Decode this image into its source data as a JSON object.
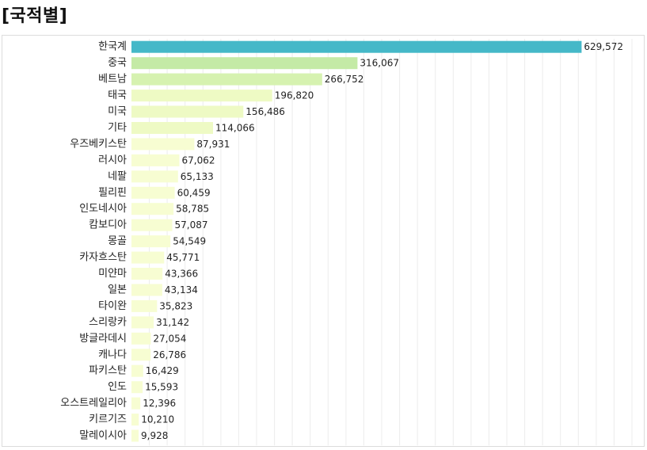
{
  "page": {
    "title": "[국적별]"
  },
  "chart_data": {
    "type": "bar",
    "orientation": "horizontal",
    "title": "[국적별]",
    "xlabel": "",
    "ylabel": "",
    "xlim": [
      0,
      700000
    ],
    "grid": true,
    "legend": "none",
    "categories": [
      "한국계",
      "중국",
      "베트남",
      "태국",
      "미국",
      "기타",
      "우즈베키스탄",
      "러시아",
      "네팔",
      "필리핀",
      "인도네시아",
      "캄보디아",
      "몽골",
      "카자흐스탄",
      "미얀마",
      "일본",
      "타이완",
      "스리랑카",
      "방글라데시",
      "캐나다",
      "파키스탄",
      "인도",
      "오스트레일리아",
      "키르기즈",
      "말레이시아"
    ],
    "values": [
      629572,
      316067,
      266752,
      196820,
      156486,
      114066,
      87931,
      67062,
      65133,
      60459,
      58785,
      57087,
      54549,
      45771,
      43366,
      43134,
      35823,
      31142,
      27054,
      26786,
      16429,
      15593,
      12396,
      10210,
      9928
    ],
    "value_labels": [
      "629,572",
      "316,067",
      "266,752",
      "196,820",
      "156,486",
      "114,066",
      "87,931",
      "67,062",
      "65,133",
      "60,459",
      "58,785",
      "57,087",
      "54,549",
      "45,771",
      "43,366",
      "43,134",
      "35,823",
      "31,142",
      "27,054",
      "26,786",
      "16,429",
      "15,593",
      "12,396",
      "10,210",
      "9,928"
    ],
    "colors": {
      "top": "#45b8c8",
      "high": "#c4eaa6",
      "mid": "#d6f2b0",
      "low": "#eefac4",
      "lowest": "#f7fdd2"
    }
  }
}
